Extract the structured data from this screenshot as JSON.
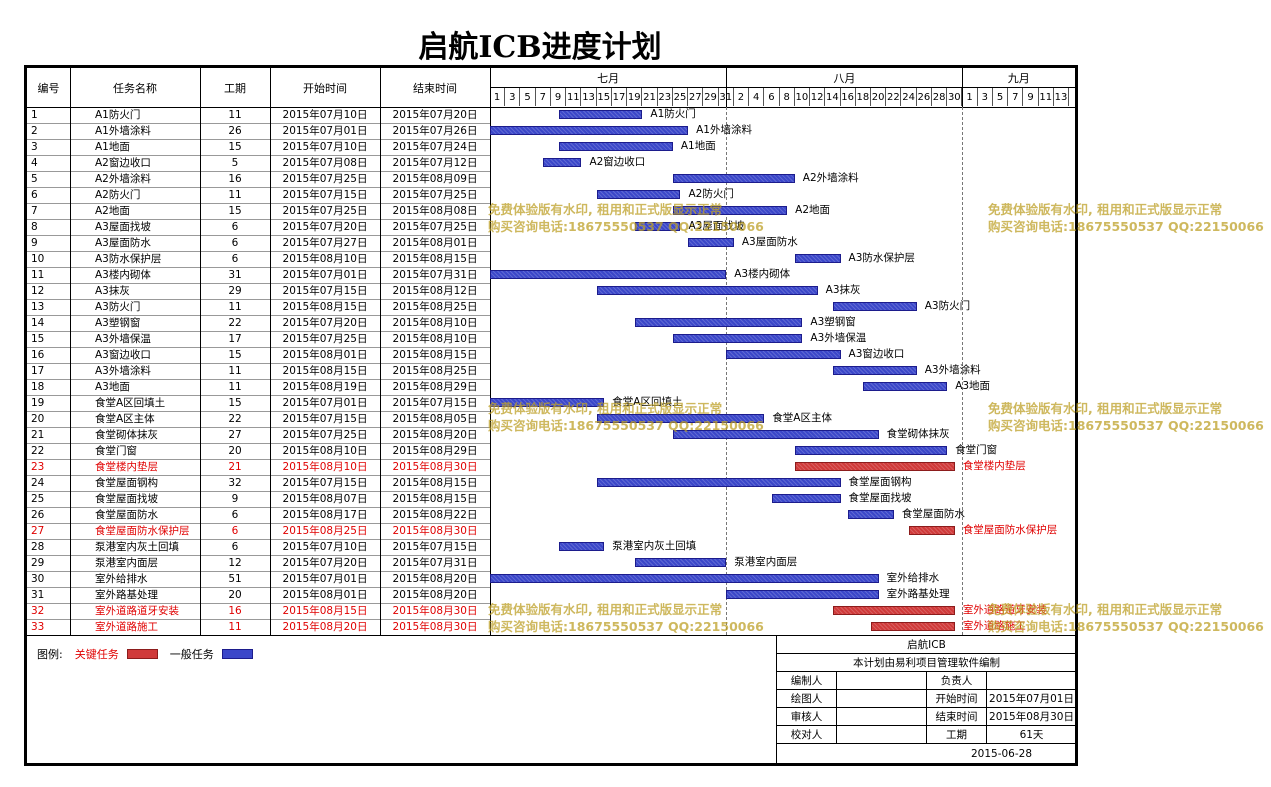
{
  "title": "启航ICB进度计划",
  "columns": [
    "编号",
    "任务名称",
    "工期",
    "开始时间",
    "结束时间"
  ],
  "months": [
    "七月",
    "八月",
    "九月"
  ],
  "day_ticks": {
    "jul": [
      "1",
      "3",
      "5",
      "7",
      "9",
      "11",
      "13",
      "15",
      "17",
      "19",
      "21",
      "23",
      "25",
      "27",
      "29",
      "31"
    ],
    "aug": [
      "2",
      "4",
      "6",
      "8",
      "10",
      "12",
      "14",
      "16",
      "18",
      "20",
      "22",
      "24",
      "26",
      "28",
      "30"
    ],
    "sep": [
      "1",
      "3",
      "5",
      "7",
      "9",
      "11",
      "13"
    ]
  },
  "tasks": [
    {
      "id": "1",
      "name": "A1防火门",
      "dur": "11",
      "start": "2015年07月10日",
      "end": "2015年07月20日",
      "critical": false
    },
    {
      "id": "2",
      "name": "A1外墙涂料",
      "dur": "26",
      "start": "2015年07月01日",
      "end": "2015年07月26日",
      "critical": false
    },
    {
      "id": "3",
      "name": "A1地面",
      "dur": "15",
      "start": "2015年07月10日",
      "end": "2015年07月24日",
      "critical": false
    },
    {
      "id": "4",
      "name": "A2窗边收口",
      "dur": "5",
      "start": "2015年07月08日",
      "end": "2015年07月12日",
      "critical": false
    },
    {
      "id": "5",
      "name": "A2外墙涂料",
      "dur": "16",
      "start": "2015年07月25日",
      "end": "2015年08月09日",
      "critical": false
    },
    {
      "id": "6",
      "name": "A2防火门",
      "dur": "11",
      "start": "2015年07月15日",
      "end": "2015年07月25日",
      "critical": false
    },
    {
      "id": "7",
      "name": "A2地面",
      "dur": "15",
      "start": "2015年07月25日",
      "end": "2015年08月08日",
      "critical": false
    },
    {
      "id": "8",
      "name": "A3屋面找坡",
      "dur": "6",
      "start": "2015年07月20日",
      "end": "2015年07月25日",
      "critical": false
    },
    {
      "id": "9",
      "name": "A3屋面防水",
      "dur": "6",
      "start": "2015年07月27日",
      "end": "2015年08月01日",
      "critical": false
    },
    {
      "id": "10",
      "name": "A3防水保护层",
      "dur": "6",
      "start": "2015年08月10日",
      "end": "2015年08月15日",
      "critical": false
    },
    {
      "id": "11",
      "name": "A3楼内砌体",
      "dur": "31",
      "start": "2015年07月01日",
      "end": "2015年07月31日",
      "critical": false
    },
    {
      "id": "12",
      "name": "A3抹灰",
      "dur": "29",
      "start": "2015年07月15日",
      "end": "2015年08月12日",
      "critical": false
    },
    {
      "id": "13",
      "name": "A3防火门",
      "dur": "11",
      "start": "2015年08月15日",
      "end": "2015年08月25日",
      "critical": false
    },
    {
      "id": "14",
      "name": "A3塑钢窗",
      "dur": "22",
      "start": "2015年07月20日",
      "end": "2015年08月10日",
      "critical": false
    },
    {
      "id": "15",
      "name": "A3外墙保温",
      "dur": "17",
      "start": "2015年07月25日",
      "end": "2015年08月10日",
      "critical": false
    },
    {
      "id": "16",
      "name": "A3窗边收口",
      "dur": "15",
      "start": "2015年08月01日",
      "end": "2015年08月15日",
      "critical": false
    },
    {
      "id": "17",
      "name": "A3外墙涂料",
      "dur": "11",
      "start": "2015年08月15日",
      "end": "2015年08月25日",
      "critical": false
    },
    {
      "id": "18",
      "name": "A3地面",
      "dur": "11",
      "start": "2015年08月19日",
      "end": "2015年08月29日",
      "critical": false
    },
    {
      "id": "19",
      "name": "食堂A区回填土",
      "dur": "15",
      "start": "2015年07月01日",
      "end": "2015年07月15日",
      "critical": false
    },
    {
      "id": "20",
      "name": "食堂A区主体",
      "dur": "22",
      "start": "2015年07月15日",
      "end": "2015年08月05日",
      "critical": false
    },
    {
      "id": "21",
      "name": "食堂砌体抹灰",
      "dur": "27",
      "start": "2015年07月25日",
      "end": "2015年08月20日",
      "critical": false
    },
    {
      "id": "22",
      "name": "食堂门窗",
      "dur": "20",
      "start": "2015年08月10日",
      "end": "2015年08月29日",
      "critical": false
    },
    {
      "id": "23",
      "name": "食堂楼内垫层",
      "dur": "21",
      "start": "2015年08月10日",
      "end": "2015年08月30日",
      "critical": true
    },
    {
      "id": "24",
      "name": "食堂屋面钢构",
      "dur": "32",
      "start": "2015年07月15日",
      "end": "2015年08月15日",
      "critical": false
    },
    {
      "id": "25",
      "name": "食堂屋面找坡",
      "dur": "9",
      "start": "2015年08月07日",
      "end": "2015年08月15日",
      "critical": false
    },
    {
      "id": "26",
      "name": "食堂屋面防水",
      "dur": "6",
      "start": "2015年08月17日",
      "end": "2015年08月22日",
      "critical": false
    },
    {
      "id": "27",
      "name": "食堂屋面防水保护层",
      "dur": "6",
      "start": "2015年08月25日",
      "end": "2015年08月30日",
      "critical": true
    },
    {
      "id": "28",
      "name": "泵港室内灰土回填",
      "dur": "6",
      "start": "2015年07月10日",
      "end": "2015年07月15日",
      "critical": false
    },
    {
      "id": "29",
      "name": "泵港室内面层",
      "dur": "12",
      "start": "2015年07月20日",
      "end": "2015年07月31日",
      "critical": false
    },
    {
      "id": "30",
      "name": "室外给排水",
      "dur": "51",
      "start": "2015年07月01日",
      "end": "2015年08月20日",
      "critical": false
    },
    {
      "id": "31",
      "name": "室外路基处理",
      "dur": "20",
      "start": "2015年08月01日",
      "end": "2015年08月20日",
      "critical": false
    },
    {
      "id": "32",
      "name": "室外道路道牙安装",
      "dur": "16",
      "start": "2015年08月15日",
      "end": "2015年08月30日",
      "critical": true
    },
    {
      "id": "33",
      "name": "室外道路施工",
      "dur": "11",
      "start": "2015年08月20日",
      "end": "2015年08月30日",
      "critical": true
    }
  ],
  "legend": {
    "label": "图例:",
    "critical": "关键任务",
    "normal": "一般任务"
  },
  "title_block": {
    "project": "启航ICB",
    "note": "本计划由易利项目管理软件编制",
    "editor_label": "编制人",
    "editor": "",
    "owner_label": "负责人",
    "owner": "",
    "drafter_label": "绘图人",
    "drafter": "",
    "start_label": "开始时间",
    "start": "2015年07月01日",
    "reviewer_label": "审核人",
    "reviewer": "",
    "end_label": "结束时间",
    "end": "2015年08月30日",
    "checker_label": "校对人",
    "checker": "",
    "dur_label": "工期",
    "dur": "61天",
    "date": "2015-06-28"
  },
  "watermark": {
    "line1": "免费体验版有水印, 租用和正式版显示正常",
    "line2": "购买咨询电话:18675550537 QQ:22150066"
  },
  "colors": {
    "normal_bar": "#3b47c9",
    "critical_bar": "#d03a3a",
    "critical_text": "#e00000"
  }
}
